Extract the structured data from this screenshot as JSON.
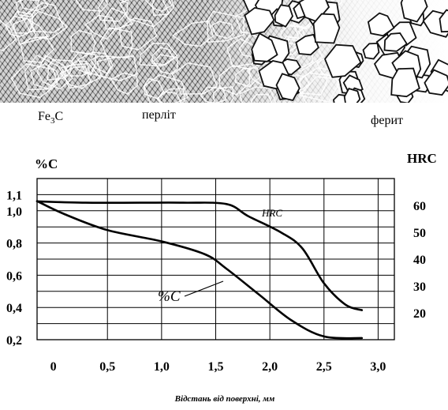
{
  "micrograph": {
    "labels": [
      {
        "text_base": "Fe",
        "text_sub": "3",
        "text_tail": "C"
      },
      {
        "text": "перліт"
      },
      {
        "text": "ферит"
      }
    ]
  },
  "chart_data": {
    "type": "line",
    "ylabel_left": "%C",
    "ylabel_right": "HRC",
    "xlabel": "Відстань від поверхні, мм",
    "x_ticks": [
      "0",
      "0,5",
      "1,0",
      "1,5",
      "2,0",
      "2,5",
      "3,0"
    ],
    "x_tick_values": [
      0,
      0.5,
      1.0,
      1.5,
      2.0,
      2.5,
      3.0
    ],
    "y_left_ticks": [
      "1,1",
      "1,0",
      "0,8",
      "0,6",
      "0,4",
      "0,2"
    ],
    "y_left_tick_values": [
      1.1,
      1.0,
      0.8,
      0.6,
      0.4,
      0.2
    ],
    "y_right_ticks": [
      "60",
      "50",
      "40",
      "30",
      "20"
    ],
    "y_right_tick_values": [
      60,
      50,
      40,
      30,
      20
    ],
    "ylim_left": [
      0.2,
      1.2
    ],
    "ylim_right": [
      10,
      70
    ],
    "xlim": [
      -0.15,
      3.15
    ],
    "grid": true,
    "series": [
      {
        "name": "HRC",
        "axis": "right",
        "x": [
          -0.15,
          0.3,
          0.8,
          1.2,
          1.6,
          1.8,
          2.1,
          2.3,
          2.5,
          2.7,
          2.85
        ],
        "y": [
          61.5,
          61,
          61,
          61,
          60.5,
          56,
          50,
          44,
          31,
          23,
          21
        ]
      },
      {
        "name": "%C",
        "axis": "left",
        "x": [
          -0.15,
          0.1,
          0.5,
          1.0,
          1.4,
          1.6,
          1.9,
          2.2,
          2.5,
          2.85
        ],
        "y": [
          1.06,
          0.98,
          0.88,
          0.81,
          0.73,
          0.64,
          0.48,
          0.32,
          0.22,
          0.21
        ]
      }
    ]
  }
}
